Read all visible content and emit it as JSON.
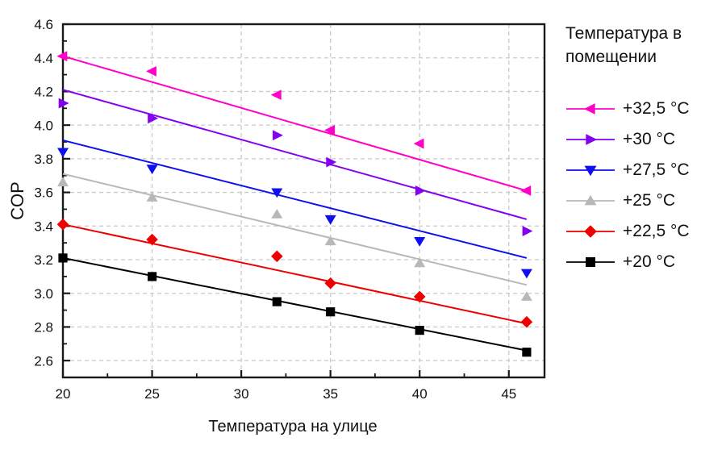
{
  "legend": {
    "title": "Температура в помещении"
  },
  "chart_data": {
    "type": "scatter",
    "title": "",
    "xlabel": "Температура на улице",
    "ylabel": "COP",
    "xlim": [
      20,
      47
    ],
    "ylim": [
      2.5,
      4.6
    ],
    "grid": {
      "show": true,
      "color": "#c9c9c9",
      "dash": "5,4"
    },
    "axis_color": "#1a1a1a",
    "x_tick_labels": [
      "20",
      "25",
      "30",
      "35",
      "40",
      "45"
    ],
    "x_major_ticks": [
      20,
      25,
      30,
      35,
      40,
      45
    ],
    "x_minor_ticks": [
      22.5,
      27.5,
      32.5,
      37.5,
      42.5
    ],
    "y_tick_labels": [
      "2.6",
      "2.8",
      "3.0",
      "3.2",
      "3.4",
      "3.6",
      "3.8",
      "4.0",
      "4.2",
      "4.4",
      "4.6"
    ],
    "y_major_ticks": [
      2.6,
      2.8,
      3.0,
      3.2,
      3.4,
      3.6,
      3.8,
      4.0,
      4.2,
      4.4,
      4.6
    ],
    "y_minor_ticks": [
      2.7,
      2.9,
      3.1,
      3.3,
      3.5,
      3.7,
      3.9,
      4.1,
      4.3,
      4.5
    ],
    "x_gridlines": [
      25,
      30,
      35,
      40,
      45
    ],
    "y_gridlines": [
      2.6,
      2.8,
      3.0,
      3.2,
      3.4,
      3.6,
      3.8,
      4.0,
      4.2,
      4.4
    ],
    "legend_position": "right",
    "x": [
      20,
      25,
      32,
      35,
      40,
      46
    ],
    "trend_x": [
      20,
      46
    ],
    "series": [
      {
        "name": "+32,5 °C",
        "color": "#ff00c8",
        "marker": "triangle-left",
        "values": [
          4.41,
          4.32,
          4.18,
          3.97,
          3.89,
          3.61
        ],
        "trend": [
          4.41,
          3.61
        ]
      },
      {
        "name": "+30 °C",
        "color": "#8400f0",
        "marker": "triangle-right",
        "values": [
          4.13,
          4.04,
          3.94,
          3.78,
          3.61,
          3.37
        ],
        "trend": [
          4.21,
          3.44
        ]
      },
      {
        "name": "+27,5 °C",
        "color": "#0f0fee",
        "marker": "triangle-down",
        "values": [
          3.84,
          3.74,
          3.6,
          3.44,
          3.31,
          3.12
        ],
        "trend": [
          3.91,
          3.21
        ]
      },
      {
        "name": "+25 °C",
        "color": "#b8b8b8",
        "marker": "triangle-up",
        "values": [
          3.66,
          3.57,
          3.47,
          3.31,
          3.18,
          2.98
        ],
        "trend": [
          3.71,
          3.05
        ]
      },
      {
        "name": "+22,5 °C",
        "color": "#ee0000",
        "marker": "diamond",
        "values": [
          3.41,
          3.32,
          3.22,
          3.06,
          2.98,
          2.83
        ],
        "trend": [
          3.41,
          2.82
        ]
      },
      {
        "name": "+20 °C",
        "color": "#000000",
        "marker": "square",
        "values": [
          3.21,
          3.1,
          2.95,
          2.89,
          2.78,
          2.65
        ],
        "trend": [
          3.21,
          2.66
        ]
      }
    ]
  }
}
